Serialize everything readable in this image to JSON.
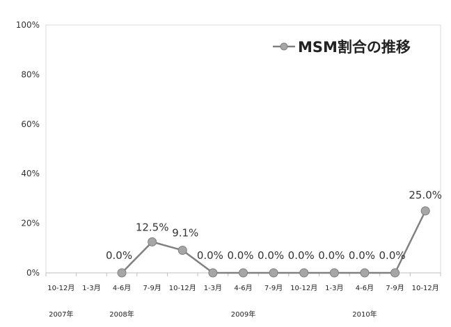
{
  "chart_data": {
    "type": "line",
    "categories": [
      "10-12月",
      "1-3月",
      "4-6月",
      "7-9月",
      "10-12月",
      "1-3月",
      "4-6月",
      "7-9月",
      "10-12月",
      "1-3月",
      "4-6月",
      "7-9月",
      "10-12月"
    ],
    "year_labels": [
      {
        "label": "2007年",
        "category_index": 0
      },
      {
        "label": "2008年",
        "category_index": 2
      },
      {
        "label": "2009年",
        "category_index": 6
      },
      {
        "label": "2010年",
        "category_index": 10
      }
    ],
    "series": [
      {
        "name": "MSM割合の推移",
        "values": [
          null,
          null,
          0.0,
          12.5,
          9.1,
          0.0,
          0.0,
          0.0,
          0.0,
          0.0,
          0.0,
          0.0,
          25.0
        ],
        "data_labels": [
          null,
          null,
          "0.0%",
          "12.5%",
          "9.1%",
          "0.0%",
          "0.0%",
          "0.0%",
          "0.0%",
          "0.0%",
          "0.0%",
          "0.0%",
          "25.0%"
        ]
      }
    ],
    "yticks": [
      0,
      20,
      40,
      60,
      80,
      100
    ],
    "ytick_labels": [
      "0%",
      "20%",
      "40%",
      "60%",
      "80%",
      "100%"
    ],
    "ylim": [
      0,
      100
    ],
    "grid": false,
    "legend_position": "top-right",
    "colors": {
      "line": "#808080",
      "marker": "#a6a6a6",
      "marker_edge": "#7f7f7f",
      "axis": "#bfbfbf"
    }
  }
}
